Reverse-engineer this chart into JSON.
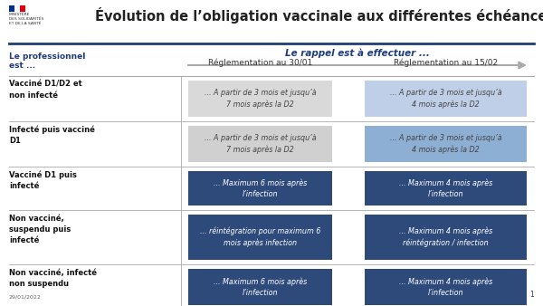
{
  "title": "Évolution de l’obligation vaccinale aux différentes échéances",
  "header_col": "Le professionnel\nest ...",
  "header_rappel": "Le rappel est à effectuer ...",
  "col1_header": "Réglementation au 30/01",
  "col2_header": "Réglementation au 15/02",
  "rows": [
    {
      "label": "Vacciné D1/D2 et\nnon infecté",
      "col1": "... A partir de 3 mois et jusqu’à\n7 mois après la D2",
      "col2": "... A partir de 3 mois et jusqu’à\n4 mois après la D2",
      "col1_color": "#d9d9d9",
      "col2_color": "#c0cfe8",
      "col1_text_color": "#444444",
      "col2_text_color": "#444444"
    },
    {
      "label": "Infecté puis vacciné\nD1",
      "col1": "... A partir de 3 mois et jusqu’à\n7 mois après la D2",
      "col2": "... A partir de 3 mois et jusqu’à\n4 mois après la D2",
      "col1_color": "#d0d0d0",
      "col2_color": "#8dafd4",
      "col1_text_color": "#444444",
      "col2_text_color": "#444444"
    },
    {
      "label": "Vacciné D1 puis\ninfecté",
      "col1": "... Maximum 6 mois après\nl’infection",
      "col2": "... Maximum 4 mois après\nl’infection",
      "col1_color": "#2d4a7a",
      "col2_color": "#2d4a7a",
      "col1_text_color": "#ffffff",
      "col2_text_color": "#ffffff"
    },
    {
      "label": "Non vacciné,\nsuspendu puis\ninfecté",
      "col1": "... réintégration pour maximum 6\nmois après infection",
      "col2": "... Maximum 4 mois après\nréintégration / infection",
      "col1_color": "#2d4a7a",
      "col2_color": "#2d4a7a",
      "col1_text_color": "#ffffff",
      "col2_text_color": "#ffffff"
    },
    {
      "label": "Non vacciné, infecté\nnon suspendu",
      "col1": "... Maximum 6 mois après\nl’infection",
      "col2": "... Maximum 4 mois après\nl’infection",
      "col1_color": "#2d4a7a",
      "col2_color": "#2d4a7a",
      "col1_text_color": "#ffffff",
      "col2_text_color": "#ffffff"
    }
  ],
  "bg_color": "#ffffff",
  "title_color": "#222222",
  "header_color": "#1f3d7a",
  "label_color": "#111111",
  "rappel_color": "#1f3d7a",
  "col_header_color": "#333333",
  "footer_text": "29/01/2022",
  "page_num": "1",
  "flag_blue": "#003189",
  "flag_white": "#ffffff",
  "flag_red": "#e1000f",
  "divider_color": "#1f3d7a",
  "row_divider_color": "#aaaaaa",
  "vertical_div_color": "#aaaaaa",
  "ministry_text": "MINISTÈRE\nDES SOLIDARITÉS\nET DE LA SANTÉ",
  "arrow_color": "#aaaaaa"
}
